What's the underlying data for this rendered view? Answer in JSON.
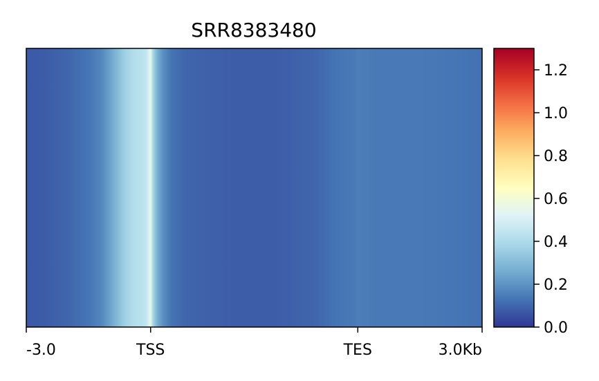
{
  "chart_data": {
    "type": "heatmap",
    "title": "SRR8383480",
    "xlabel": "",
    "ylabel": "",
    "x_ticks": [
      {
        "label": "-3.0",
        "value": 0
      },
      {
        "label": "TSS",
        "value": 3.0
      },
      {
        "label": "TES",
        "value": 8.0
      },
      {
        "label": "3.0Kb",
        "value": 11.0
      }
    ],
    "x_range": [
      0,
      11.0
    ],
    "profile": {
      "x": [
        0,
        0.5,
        1.0,
        1.5,
        1.8,
        2.0,
        2.2,
        2.4,
        2.6,
        2.8,
        2.9,
        2.95,
        3.0,
        3.05,
        3.15,
        3.3,
        3.5,
        3.8,
        4.2,
        5.0,
        6.0,
        7.0,
        7.5,
        7.9,
        8.0,
        8.5,
        9.5,
        10.5,
        11.0
      ],
      "values": [
        0.07,
        0.08,
        0.1,
        0.13,
        0.17,
        0.23,
        0.3,
        0.37,
        0.41,
        0.43,
        0.45,
        0.5,
        0.57,
        0.4,
        0.28,
        0.19,
        0.13,
        0.1,
        0.09,
        0.08,
        0.08,
        0.1,
        0.13,
        0.14,
        0.15,
        0.14,
        0.14,
        0.13,
        0.12
      ]
    },
    "colorbar": {
      "colormap": "RdYlBu_r",
      "range": [
        0.0,
        1.3
      ],
      "ticks": [
        "0.0",
        "0.2",
        "0.4",
        "0.6",
        "0.8",
        "1.0",
        "1.2"
      ],
      "tick_values": [
        0.0,
        0.2,
        0.4,
        0.6,
        0.8,
        1.0,
        1.2
      ],
      "colors": [
        "#313695",
        "#4575b4",
        "#74add1",
        "#abd9e9",
        "#e0f3f8",
        "#ffffbf",
        "#fee090",
        "#fdae61",
        "#f46d43",
        "#d73027",
        "#a50026"
      ]
    },
    "grid": false,
    "legend": "none"
  }
}
